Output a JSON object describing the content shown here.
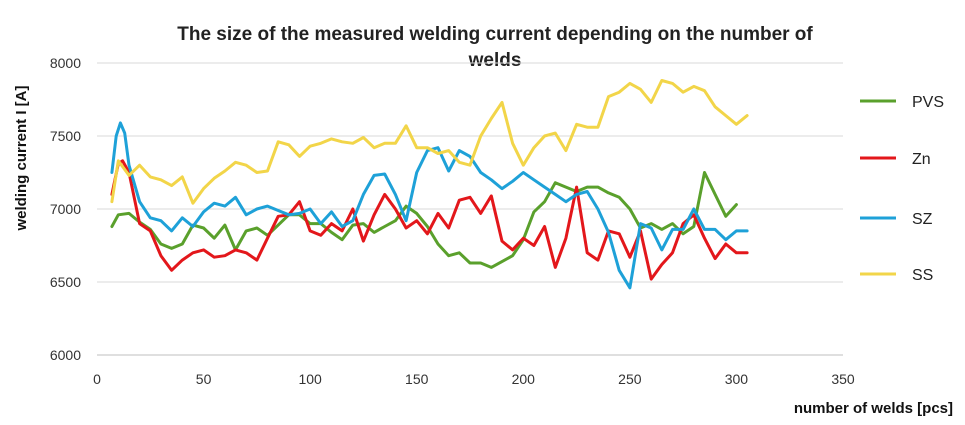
{
  "chart_data": {
    "type": "line",
    "title": "The size of the measured welding current depending on the number of welds",
    "xlabel": "number of welds [pcs]",
    "ylabel": "welding current I [A]",
    "xlim": [
      0,
      350
    ],
    "ylim": [
      6000,
      8000
    ],
    "x_ticks": [
      "0",
      "50",
      "100",
      "150",
      "200",
      "250",
      "300",
      "350"
    ],
    "y_ticks": [
      "6000",
      "6500",
      "7000",
      "7500",
      "8000"
    ],
    "grid": "horizontal",
    "legend_position": "right",
    "series": [
      {
        "name": "PVS",
        "color": "#5aa02c",
        "x": [
          7,
          10,
          15,
          20,
          25,
          30,
          35,
          40,
          45,
          50,
          55,
          60,
          65,
          70,
          75,
          80,
          85,
          90,
          95,
          100,
          105,
          110,
          115,
          120,
          125,
          130,
          135,
          140,
          145,
          150,
          155,
          160,
          165,
          170,
          175,
          180,
          185,
          190,
          195,
          200,
          205,
          210,
          215,
          220,
          225,
          230,
          235,
          240,
          245,
          250,
          255,
          260,
          265,
          270,
          275,
          280,
          285,
          290,
          295,
          300
        ],
        "y": [
          6880,
          6960,
          6970,
          6910,
          6860,
          6760,
          6730,
          6760,
          6890,
          6870,
          6800,
          6890,
          6720,
          6850,
          6870,
          6820,
          6890,
          6960,
          6960,
          6900,
          6900,
          6840,
          6790,
          6890,
          6900,
          6840,
          6880,
          6920,
          7020,
          6970,
          6880,
          6760,
          6680,
          6700,
          6630,
          6630,
          6600,
          6640,
          6680,
          6790,
          6980,
          7050,
          7180,
          7150,
          7120,
          7150,
          7150,
          7110,
          7080,
          7000,
          6870,
          6900,
          6860,
          6900,
          6830,
          6880,
          7250,
          7100,
          6950,
          7030
        ]
      },
      {
        "name": "Zn",
        "color": "#e3171b",
        "x": [
          7,
          10,
          12,
          15,
          20,
          25,
          30,
          35,
          40,
          45,
          50,
          55,
          60,
          65,
          70,
          75,
          80,
          85,
          90,
          95,
          100,
          105,
          110,
          115,
          120,
          125,
          130,
          135,
          140,
          145,
          150,
          155,
          160,
          165,
          170,
          175,
          180,
          185,
          190,
          195,
          200,
          205,
          210,
          215,
          220,
          225,
          230,
          235,
          240,
          245,
          250,
          255,
          260,
          265,
          270,
          275,
          280,
          285,
          290,
          295,
          300,
          305
        ],
        "y": [
          7100,
          7310,
          7330,
          7250,
          6900,
          6850,
          6680,
          6580,
          6650,
          6700,
          6720,
          6670,
          6680,
          6720,
          6700,
          6650,
          6800,
          6950,
          6960,
          7050,
          6850,
          6820,
          6900,
          6850,
          7000,
          6780,
          6960,
          7100,
          7000,
          6870,
          6920,
          6830,
          6970,
          6870,
          7060,
          7080,
          6970,
          7090,
          6780,
          6720,
          6800,
          6750,
          6880,
          6600,
          6800,
          7150,
          6700,
          6650,
          6850,
          6830,
          6670,
          6850,
          6520,
          6620,
          6700,
          6900,
          6960,
          6800,
          6660,
          6760,
          6700,
          6700
        ]
      },
      {
        "name": "SZ",
        "color": "#1ea1d8",
        "x": [
          7,
          9,
          11,
          13,
          15,
          20,
          25,
          30,
          35,
          40,
          45,
          50,
          55,
          60,
          65,
          70,
          75,
          80,
          85,
          90,
          95,
          100,
          105,
          110,
          115,
          120,
          125,
          130,
          135,
          140,
          145,
          150,
          155,
          160,
          165,
          170,
          175,
          180,
          185,
          190,
          195,
          200,
          205,
          210,
          215,
          220,
          225,
          230,
          235,
          240,
          245,
          250,
          255,
          260,
          265,
          270,
          275,
          280,
          285,
          290,
          295,
          300,
          305
        ],
        "y": [
          7250,
          7500,
          7590,
          7520,
          7300,
          7050,
          6940,
          6920,
          6850,
          6940,
          6880,
          6980,
          7040,
          7020,
          7080,
          6960,
          7000,
          7020,
          6990,
          6960,
          6970,
          7000,
          6900,
          6980,
          6880,
          6920,
          7100,
          7230,
          7240,
          7100,
          6920,
          7250,
          7400,
          7420,
          7260,
          7400,
          7360,
          7250,
          7200,
          7140,
          7190,
          7250,
          7200,
          7150,
          7100,
          7050,
          7100,
          7120,
          7000,
          6840,
          6580,
          6460,
          6900,
          6870,
          6720,
          6860,
          6860,
          7000,
          6860,
          6860,
          6790,
          6850,
          6850
        ]
      },
      {
        "name": "SS",
        "color": "#f2d549",
        "x": [
          7,
          10,
          15,
          20,
          25,
          30,
          35,
          40,
          45,
          50,
          55,
          60,
          65,
          70,
          75,
          80,
          85,
          90,
          95,
          100,
          105,
          110,
          115,
          120,
          125,
          130,
          135,
          140,
          145,
          150,
          155,
          160,
          165,
          170,
          175,
          180,
          185,
          190,
          195,
          200,
          205,
          210,
          215,
          220,
          225,
          230,
          235,
          240,
          245,
          250,
          255,
          260,
          265,
          270,
          275,
          280,
          285,
          290,
          295,
          300,
          305
        ],
        "y": [
          7050,
          7330,
          7230,
          7300,
          7220,
          7200,
          7160,
          7220,
          7040,
          7140,
          7210,
          7260,
          7320,
          7300,
          7250,
          7260,
          7460,
          7440,
          7360,
          7430,
          7450,
          7480,
          7460,
          7450,
          7490,
          7420,
          7450,
          7450,
          7570,
          7420,
          7420,
          7380,
          7400,
          7320,
          7300,
          7500,
          7620,
          7730,
          7450,
          7300,
          7420,
          7500,
          7520,
          7400,
          7580,
          7560,
          7560,
          7770,
          7800,
          7860,
          7820,
          7730,
          7880,
          7860,
          7800,
          7840,
          7810,
          7700,
          7640,
          7580,
          7640
        ]
      }
    ]
  }
}
